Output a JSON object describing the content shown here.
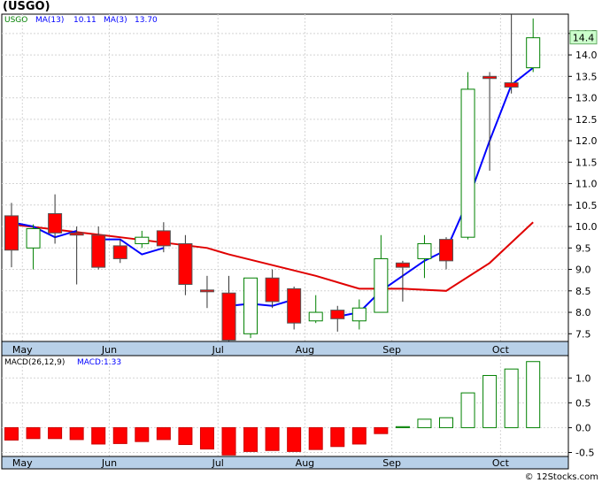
{
  "title": "(USGO)",
  "watermark": "© 12Stocks.com",
  "colors": {
    "up": "#008000",
    "down": "#ff0000",
    "ma_fast": "#0000ff",
    "ma_slow": "#e00000",
    "axis_band": "#b8d0e8"
  },
  "chart_data": [
    {
      "type": "candlestick",
      "legend": {
        "symbol": "USGO",
        "ma13_label": "MA(13)",
        "ma13_value": "10.11",
        "ma3_label": "MA(3)",
        "ma3_value": "13.70"
      },
      "ylim": [
        7.3,
        14.95
      ],
      "y_ticks": [
        "7.5",
        "8.0",
        "8.5",
        "9.0",
        "9.5",
        "10.0",
        "10.5",
        "11.0",
        "11.5",
        "12.0",
        "12.5",
        "13.0",
        "13.5",
        "14.0",
        "14.5"
      ],
      "x_labels": [
        {
          "label": "May",
          "bar": 0.5
        },
        {
          "label": "Jun",
          "bar": 4.5
        },
        {
          "label": "Jul",
          "bar": 9.5
        },
        {
          "label": "Aug",
          "bar": 13.5
        },
        {
          "label": "Sep",
          "bar": 17.5
        },
        {
          "label": "Oct",
          "bar": 22.5
        }
      ],
      "last_price": "14.4",
      "candles": [
        {
          "o": 10.25,
          "h": 10.55,
          "l": 9.05,
          "c": 9.45
        },
        {
          "o": 9.5,
          "h": 10.05,
          "l": 9.0,
          "c": 9.95
        },
        {
          "o": 10.3,
          "h": 10.75,
          "l": 9.6,
          "c": 9.85
        },
        {
          "o": 9.85,
          "h": 10.0,
          "l": 8.65,
          "c": 9.8
        },
        {
          "o": 9.8,
          "h": 10.0,
          "l": 9.0,
          "c": 9.05
        },
        {
          "o": 9.55,
          "h": 9.7,
          "l": 9.15,
          "c": 9.25
        },
        {
          "o": 9.6,
          "h": 9.9,
          "l": 9.5,
          "c": 9.75
        },
        {
          "o": 9.9,
          "h": 10.1,
          "l": 9.4,
          "c": 9.55
        },
        {
          "o": 9.6,
          "h": 9.8,
          "l": 8.4,
          "c": 8.65
        },
        {
          "o": 8.52,
          "h": 8.85,
          "l": 8.1,
          "c": 8.5
        },
        {
          "o": 8.45,
          "h": 8.85,
          "l": 7.2,
          "c": 7.35
        },
        {
          "o": 7.5,
          "h": 8.8,
          "l": 7.4,
          "c": 8.8
        },
        {
          "o": 8.8,
          "h": 9.0,
          "l": 8.1,
          "c": 8.25
        },
        {
          "o": 8.55,
          "h": 8.6,
          "l": 7.6,
          "c": 7.75
        },
        {
          "o": 7.8,
          "h": 8.4,
          "l": 7.75,
          "c": 8.0
        },
        {
          "o": 8.05,
          "h": 8.15,
          "l": 7.55,
          "c": 7.85
        },
        {
          "o": 7.8,
          "h": 8.3,
          "l": 7.6,
          "c": 8.1
        },
        {
          "o": 8.0,
          "h": 9.8,
          "l": 8.0,
          "c": 9.25
        },
        {
          "o": 9.15,
          "h": 9.2,
          "l": 8.25,
          "c": 9.05
        },
        {
          "o": 9.25,
          "h": 9.8,
          "l": 8.8,
          "c": 9.6
        },
        {
          "o": 9.7,
          "h": 9.75,
          "l": 9.0,
          "c": 9.2
        },
        {
          "o": 9.75,
          "h": 13.6,
          "l": 9.7,
          "c": 13.2
        },
        {
          "o": 13.5,
          "h": 13.6,
          "l": 11.3,
          "c": 13.45
        },
        {
          "o": 13.35,
          "h": 14.95,
          "l": 13.1,
          "c": 13.25
        },
        {
          "o": 13.7,
          "h": 14.85,
          "l": 13.6,
          "c": 14.4
        }
      ],
      "ma13": [
        {
          "bar": 0,
          "v": 10.05
        },
        {
          "bar": 5,
          "v": 9.75
        },
        {
          "bar": 9,
          "v": 9.5
        },
        {
          "bar": 10,
          "v": 9.35
        },
        {
          "bar": 12,
          "v": 9.1
        },
        {
          "bar": 14,
          "v": 8.85
        },
        {
          "bar": 16,
          "v": 8.55
        },
        {
          "bar": 18,
          "v": 8.55
        },
        {
          "bar": 20,
          "v": 8.5
        },
        {
          "bar": 22,
          "v": 9.15
        },
        {
          "bar": 24,
          "v": 10.1
        }
      ],
      "ma3": [
        [
          {
            "bar": 0,
            "v": 10.1
          },
          {
            "bar": 1,
            "v": 10.0
          },
          {
            "bar": 2,
            "v": 9.75
          },
          {
            "bar": 3,
            "v": 9.9
          }
        ],
        [
          {
            "bar": 4,
            "v": 9.7
          },
          {
            "bar": 5,
            "v": 9.7
          },
          {
            "bar": 6,
            "v": 9.35
          },
          {
            "bar": 7,
            "v": 9.5
          }
        ],
        [
          {
            "bar": 10,
            "v": 8.15
          },
          {
            "bar": 11,
            "v": 8.2
          },
          {
            "bar": 12,
            "v": 8.15
          },
          {
            "bar": 13,
            "v": 8.3
          }
        ],
        [
          {
            "bar": 15,
            "v": 7.9
          },
          {
            "bar": 16,
            "v": 8.0
          },
          {
            "bar": 17,
            "v": 8.5
          },
          {
            "bar": 18,
            "v": 8.85
          },
          {
            "bar": 19,
            "v": 9.2
          },
          {
            "bar": 20,
            "v": 9.45
          },
          {
            "bar": 21,
            "v": 10.6
          },
          {
            "bar": 22,
            "v": 12.0
          },
          {
            "bar": 23,
            "v": 13.3
          },
          {
            "bar": 24,
            "v": 13.7
          }
        ]
      ]
    },
    {
      "type": "bar",
      "legend": {
        "label": "MACD(26,12,9)",
        "value_label": "MACD:1.33"
      },
      "ylim": [
        -0.58,
        1.45
      ],
      "y_ticks": [
        "1.0",
        "0.5",
        "0.0",
        "-0.5"
      ],
      "x_labels": [
        "May",
        "Jun",
        "Jul",
        "Aug",
        "Sep",
        "Oct"
      ],
      "values": [
        -0.25,
        -0.22,
        -0.22,
        -0.24,
        -0.33,
        -0.32,
        -0.28,
        -0.24,
        -0.34,
        -0.43,
        -0.55,
        -0.48,
        -0.46,
        -0.48,
        -0.44,
        -0.38,
        -0.33,
        -0.12,
        0.02,
        0.17,
        0.2,
        0.7,
        1.05,
        1.18,
        1.33
      ]
    }
  ]
}
